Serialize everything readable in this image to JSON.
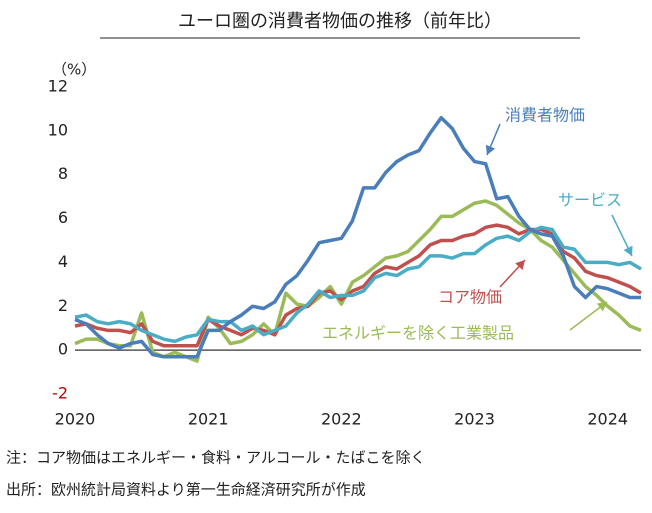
{
  "chart_data": {
    "type": "line",
    "title": "ユーロ圏の消費者物価の推移（前年比）",
    "y_label": "（%）",
    "notes": [
      "注：コア物価はエネルギー・食料・アルコール・たばこを除く",
      "出所：欧州統計局資料より第一生命経済研究所が作成"
    ],
    "categories": [
      "2020",
      null,
      null,
      null,
      null,
      null,
      null,
      null,
      null,
      null,
      null,
      null,
      "2021",
      null,
      null,
      null,
      null,
      null,
      null,
      null,
      null,
      null,
      null,
      null,
      "2022",
      null,
      null,
      null,
      null,
      null,
      null,
      null,
      null,
      null,
      null,
      null,
      "2023",
      null,
      null,
      null,
      null,
      null,
      null,
      null,
      null,
      null,
      null,
      null,
      "2024",
      null,
      null,
      null
    ],
    "ylim": [
      -2,
      12
    ],
    "yticks": [
      -2,
      0,
      2,
      4,
      6,
      8,
      10,
      12
    ],
    "series": [
      {
        "name": "消費者物価",
        "color": "#4a7ebb",
        "values": [
          1.4,
          1.2,
          0.7,
          0.3,
          0.1,
          0.3,
          0.4,
          -0.2,
          -0.3,
          -0.3,
          -0.3,
          -0.3,
          0.9,
          0.9,
          1.3,
          1.6,
          2.0,
          1.9,
          2.2,
          3.0,
          3.4,
          4.1,
          4.9,
          5.0,
          5.1,
          5.9,
          7.4,
          7.4,
          8.1,
          8.6,
          8.9,
          9.1,
          9.9,
          10.6,
          10.1,
          9.2,
          8.6,
          8.5,
          6.9,
          7.0,
          6.1,
          5.5,
          5.3,
          5.2,
          4.3,
          2.9,
          2.4,
          2.9,
          2.8,
          2.6,
          2.4,
          2.4
        ]
      },
      {
        "name": "サービス",
        "color": "#4bacc6",
        "values": [
          1.5,
          1.6,
          1.3,
          1.2,
          1.3,
          1.2,
          0.9,
          0.7,
          0.5,
          0.4,
          0.6,
          0.7,
          1.4,
          1.3,
          1.3,
          0.9,
          1.1,
          0.7,
          0.9,
          1.1,
          1.7,
          2.1,
          2.7,
          2.4,
          2.5,
          2.5,
          2.7,
          3.3,
          3.5,
          3.4,
          3.7,
          3.8,
          4.3,
          4.3,
          4.2,
          4.4,
          4.4,
          4.8,
          5.1,
          5.2,
          5.0,
          5.4,
          5.6,
          5.5,
          4.7,
          4.6,
          4.0,
          4.0,
          4.0,
          3.9,
          4.0,
          3.7
        ]
      },
      {
        "name": "コア物価",
        "color": "#c0504d",
        "values": [
          1.1,
          1.2,
          1.0,
          0.9,
          0.9,
          0.8,
          1.2,
          0.4,
          0.2,
          0.2,
          0.2,
          0.2,
          1.4,
          1.1,
          0.9,
          0.7,
          1.0,
          0.9,
          0.7,
          1.6,
          1.9,
          2.0,
          2.6,
          2.7,
          2.3,
          2.7,
          2.9,
          3.5,
          3.8,
          3.7,
          4.0,
          4.3,
          4.8,
          5.0,
          5.0,
          5.2,
          5.3,
          5.6,
          5.7,
          5.6,
          5.3,
          5.5,
          5.5,
          5.3,
          4.5,
          4.2,
          3.6,
          3.4,
          3.3,
          3.1,
          2.9,
          2.6
        ]
      },
      {
        "name": "エネルギーを除く工業製品",
        "color": "#9bbb59",
        "values": [
          0.3,
          0.5,
          0.5,
          0.3,
          0.2,
          0.2,
          1.7,
          -0.1,
          -0.3,
          -0.1,
          -0.3,
          -0.5,
          1.5,
          1.0,
          0.3,
          0.4,
          0.7,
          1.2,
          0.7,
          2.6,
          2.1,
          2.0,
          2.4,
          2.9,
          2.1,
          3.1,
          3.4,
          3.8,
          4.2,
          4.3,
          4.5,
          5.0,
          5.5,
          6.1,
          6.1,
          6.4,
          6.7,
          6.8,
          6.6,
          6.2,
          5.8,
          5.5,
          5.0,
          4.7,
          4.1,
          3.5,
          2.9,
          2.5,
          2.0,
          1.6,
          1.1,
          0.9
        ]
      }
    ]
  }
}
